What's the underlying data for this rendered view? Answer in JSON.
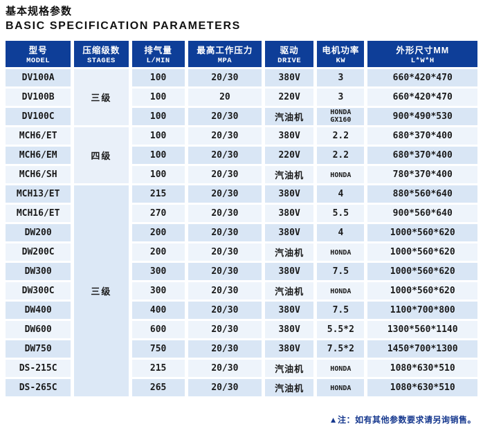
{
  "title": {
    "zh": "基本规格参数",
    "en": "BASIC SPECIFICATION PARAMETERS"
  },
  "note": "▲注：如有其他参数要求请另询销售。",
  "colors": {
    "header_bg": "#0e3e98",
    "row_odd": "#d9e6f5",
    "row_even": "#eef4fb",
    "merged_cell_light": "#e9f0f9",
    "merged_cell_dark": "#dce8f6",
    "note_text": "#16388e"
  },
  "table": {
    "columns": [
      {
        "zh": "型号",
        "en": "MODEL"
      },
      {
        "zh": "压缩级数",
        "en": "STAGES"
      },
      {
        "zh": "排气量",
        "en": "L/MIN"
      },
      {
        "zh": "最高工作压力",
        "en": "MPA"
      },
      {
        "zh": "驱动",
        "en": "DRIVE"
      },
      {
        "zh": "电机功率",
        "en": "KW"
      },
      {
        "zh": "外形尺寸MM",
        "en": "L*W*H"
      }
    ],
    "rows": [
      {
        "model": "DV100A",
        "stages": {
          "label": "三级",
          "span": 3,
          "tone": "light"
        },
        "displacement": "100",
        "pressure": "20/30",
        "drive": "380V",
        "power": "3",
        "dimensions": "660*420*470"
      },
      {
        "model": "DV100B",
        "stages": null,
        "displacement": "100",
        "pressure": "20",
        "drive": "220V",
        "power": "3",
        "dimensions": "660*420*470"
      },
      {
        "model": "DV100C",
        "stages": null,
        "displacement": "100",
        "pressure": "20/30",
        "drive": "汽油机",
        "power": "HONDA\nGX160",
        "dimensions": "900*490*530"
      },
      {
        "model": "MCH6/ET",
        "stages": {
          "label": "四级",
          "span": 3,
          "tone": "light"
        },
        "displacement": "100",
        "pressure": "20/30",
        "drive": "380V",
        "power": "2.2",
        "dimensions": "680*370*400"
      },
      {
        "model": "MCH6/EM",
        "stages": null,
        "displacement": "100",
        "pressure": "20/30",
        "drive": "220V",
        "power": "2.2",
        "dimensions": "680*370*400"
      },
      {
        "model": "MCH6/SH",
        "stages": null,
        "displacement": "100",
        "pressure": "20/30",
        "drive": "汽油机",
        "power": "HONDA",
        "dimensions": "780*370*400"
      },
      {
        "model": "MCH13/ET",
        "stages": {
          "label": "三级",
          "span": 11,
          "tone": "dark"
        },
        "displacement": "215",
        "pressure": "20/30",
        "drive": "380V",
        "power": "4",
        "dimensions": "880*560*640"
      },
      {
        "model": "MCH16/ET",
        "stages": null,
        "displacement": "270",
        "pressure": "20/30",
        "drive": "380V",
        "power": "5.5",
        "dimensions": "900*560*640"
      },
      {
        "model": "DW200",
        "stages": null,
        "displacement": "200",
        "pressure": "20/30",
        "drive": "380V",
        "power": "4",
        "dimensions": "1000*560*620"
      },
      {
        "model": "DW200C",
        "stages": null,
        "displacement": "200",
        "pressure": "20/30",
        "drive": "汽油机",
        "power": "HONDA",
        "dimensions": "1000*560*620"
      },
      {
        "model": "DW300",
        "stages": null,
        "displacement": "300",
        "pressure": "20/30",
        "drive": "380V",
        "power": "7.5",
        "dimensions": "1000*560*620"
      },
      {
        "model": "DW300C",
        "stages": null,
        "displacement": "300",
        "pressure": "20/30",
        "drive": "汽油机",
        "power": "HONDA",
        "dimensions": "1000*560*620"
      },
      {
        "model": "DW400",
        "stages": null,
        "displacement": "400",
        "pressure": "20/30",
        "drive": "380V",
        "power": "7.5",
        "dimensions": "1100*700*800"
      },
      {
        "model": "DW600",
        "stages": null,
        "displacement": "600",
        "pressure": "20/30",
        "drive": "380V",
        "power": "5.5*2",
        "dimensions": "1300*560*1140"
      },
      {
        "model": "DW750",
        "stages": null,
        "displacement": "750",
        "pressure": "20/30",
        "drive": "380V",
        "power": "7.5*2",
        "dimensions": "1450*700*1300"
      },
      {
        "model": "DS-215C",
        "stages": null,
        "displacement": "215",
        "pressure": "20/30",
        "drive": "汽油机",
        "power": "HONDA",
        "dimensions": "1080*630*510"
      },
      {
        "model": "DS-265C",
        "stages": null,
        "displacement": "265",
        "pressure": "20/30",
        "drive": "汽油机",
        "power": "HONDA",
        "dimensions": "1080*630*510"
      }
    ]
  }
}
